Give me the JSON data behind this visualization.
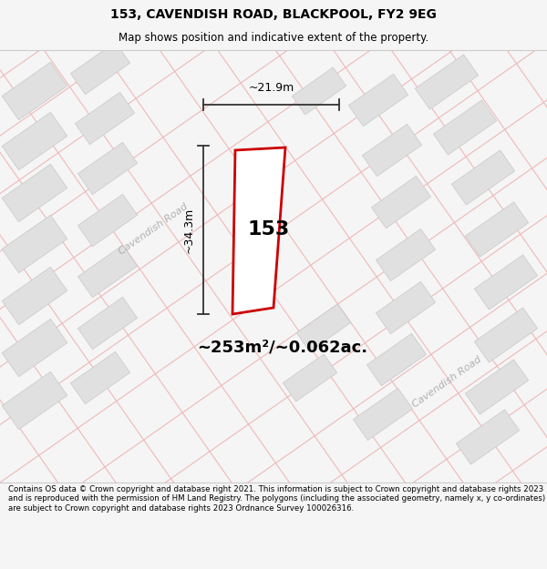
{
  "title_line1": "153, CAVENDISH ROAD, BLACKPOOL, FY2 9EG",
  "title_line2": "Map shows position and indicative extent of the property.",
  "area_text": "~253m²/~0.062ac.",
  "property_number": "153",
  "dim_width": "~21.9m",
  "dim_height": "~34.3m",
  "footer_text": "Contains OS data © Crown copyright and database right 2021. This information is subject to Crown copyright and database rights 2023 and is reproduced with the permission of HM Land Registry. The polygons (including the associated geometry, namely x, y co-ordinates) are subject to Crown copyright and database rights 2023 Ordnance Survey 100026316.",
  "bg_color": "#f5f5f5",
  "map_bg": "#ffffff",
  "road_color": "#f0b8b8",
  "block_fill": "#e0e0e0",
  "block_edge": "#c8c8c8",
  "property_fill": "#ffffff",
  "property_edge": "#cc0000",
  "dim_line_color": "#333333",
  "road_label_color": "#b0b0b0",
  "header_bg": "#f5f5f5",
  "footer_bg": "#f5f5f5",
  "sep_color": "#cccccc"
}
